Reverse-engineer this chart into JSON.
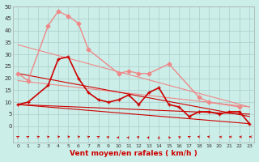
{
  "background_color": "#cceee8",
  "grid_color": "#aacccc",
  "xlabel": "Vent moyen/en rafales ( km/h )",
  "xlim": [
    -0.5,
    23.5
  ],
  "ylim": [
    0,
    50
  ],
  "yticks": [
    0,
    5,
    10,
    15,
    20,
    25,
    30,
    35,
    40,
    45,
    50
  ],
  "xticks": [
    0,
    1,
    2,
    3,
    4,
    5,
    6,
    7,
    8,
    9,
    10,
    11,
    12,
    13,
    14,
    15,
    16,
    17,
    18,
    19,
    20,
    21,
    22,
    23
  ],
  "line_light_jagged": {
    "x": [
      0,
      1,
      3,
      4,
      5,
      6,
      7,
      10,
      11,
      12,
      13,
      15,
      18,
      19,
      22
    ],
    "y": [
      22,
      19,
      42,
      48,
      46,
      43,
      32,
      22,
      23,
      22,
      22,
      26,
      12,
      10,
      8
    ],
    "color": "#ee8888",
    "lw": 1.0,
    "marker": "D",
    "ms": 2.5
  },
  "line_light_trend_high": {
    "x": [
      0,
      23
    ],
    "y": [
      34,
      8
    ],
    "color": "#ee8888",
    "lw": 0.8
  },
  "line_light_trend_low": {
    "x": [
      0,
      23
    ],
    "y": [
      19,
      8
    ],
    "color": "#ee8888",
    "lw": 0.8
  },
  "line_dark_main": {
    "x": [
      0,
      1,
      3,
      4,
      5,
      6,
      7,
      8,
      9,
      10,
      11,
      12,
      13,
      14,
      15,
      16,
      17,
      18,
      19,
      20,
      21,
      22,
      23
    ],
    "y": [
      9,
      10,
      17,
      28,
      29,
      20,
      14,
      11,
      10,
      11,
      13,
      9,
      14,
      16,
      9,
      8,
      4,
      6,
      6,
      5,
      6,
      6,
      1
    ],
    "color": "#cc0000",
    "lw": 1.2,
    "marker": "+",
    "ms": 3.5
  },
  "line_dark_trend_high": {
    "x": [
      0,
      23
    ],
    "y": [
      22,
      4
    ],
    "color": "#cc0000",
    "lw": 0.8
  },
  "line_dark_trend_low": {
    "x": [
      0,
      23
    ],
    "y": [
      9,
      1
    ],
    "color": "#cc0000",
    "lw": 0.8
  },
  "line_dark_flat": {
    "x": [
      0,
      23
    ],
    "y": [
      9,
      5
    ],
    "color": "#cc0000",
    "lw": 0.8
  },
  "wind_arrows_x": [
    0,
    1,
    2,
    3,
    4,
    5,
    6,
    7,
    8,
    9,
    10,
    11,
    12,
    13,
    14,
    15,
    16,
    17,
    18,
    19,
    20,
    21,
    22,
    23
  ],
  "wind_angles": [
    210,
    210,
    220,
    220,
    230,
    230,
    230,
    220,
    210,
    200,
    190,
    190,
    200,
    190,
    180,
    170,
    160,
    150,
    130,
    120,
    110,
    100,
    100,
    90
  ],
  "arrow_color": "#cc0000"
}
